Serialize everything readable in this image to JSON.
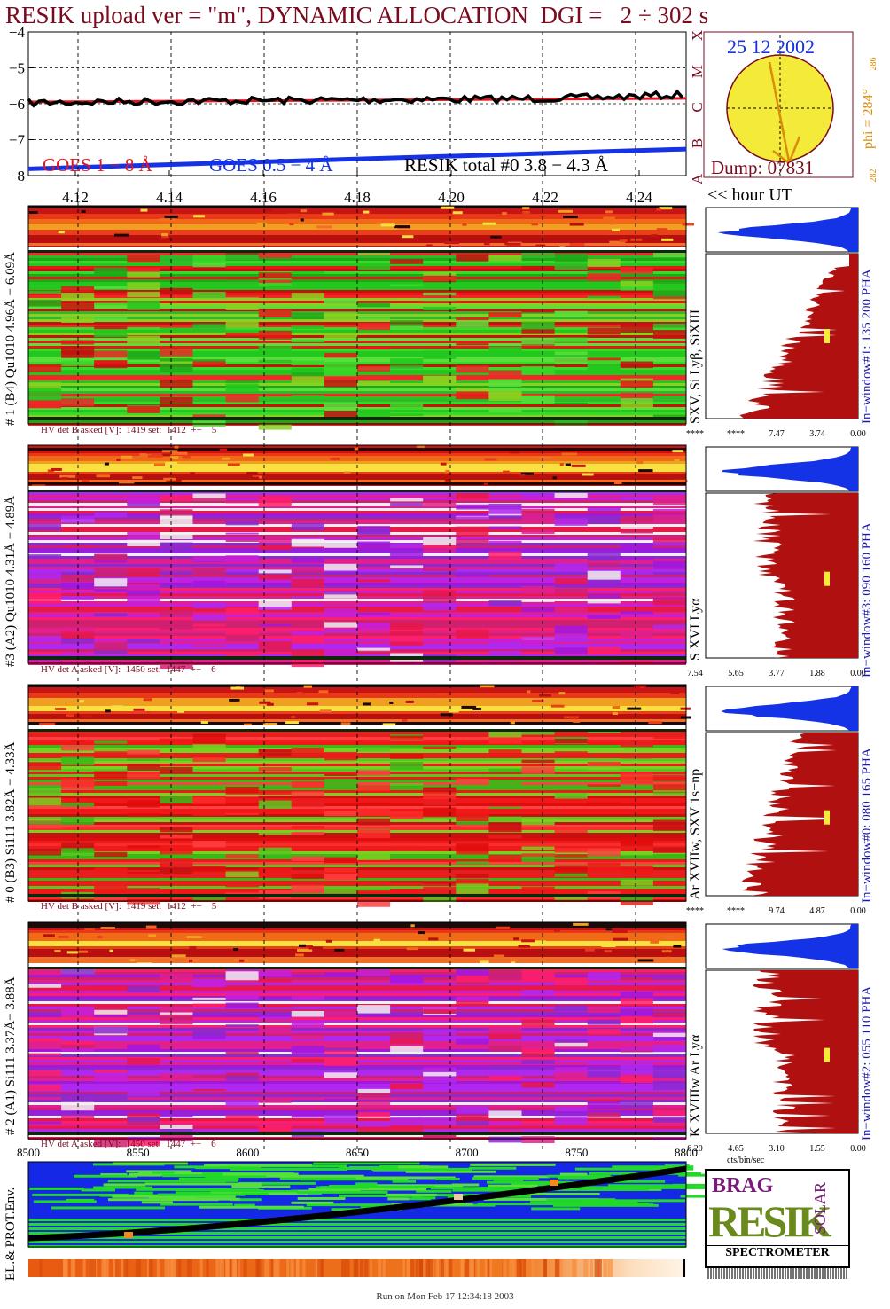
{
  "title": "RESIK upload ver = \"m\", DYNAMIC ALLOCATION  DGI =   2 ÷ 302 s",
  "footer": "Run on Mon Feb 17 12:34:18 2003",
  "colors": {
    "title": "#7a0a1e",
    "goes_red": "#e8141e",
    "goes_blue": "#1432e6",
    "resik_black": "#000000",
    "pha_fill": "#b01010",
    "pha_fill_blue": "#1432e6",
    "sun_fill": "#f4ea3a"
  },
  "chart_data": [
    {
      "type": "line",
      "name": "light-curves",
      "yticks": [
        "−4",
        "−5",
        "−6",
        "−7",
        "−8"
      ],
      "ylim": [
        -8,
        -4
      ],
      "xticks": [
        "4.12",
        "4.14",
        "4.16",
        "4.18",
        "4.20",
        "4.22",
        "4.24"
      ],
      "xlim": [
        4.11,
        4.25
      ],
      "class_letters": [
        "X",
        "M",
        "C",
        "B",
        "A"
      ],
      "legend": [
        "GOES 1 − 8 Å",
        "GOES 0.5 − 4 Å",
        "RESIK total #0  3.8 − 4.3 Å"
      ],
      "series": [
        {
          "legend_index": 0,
          "x": [
            4.11,
            4.25
          ],
          "y": [
            -5.95,
            -5.85
          ]
        },
        {
          "legend_index": 1,
          "x": [
            4.11,
            4.25
          ],
          "y": [
            -7.75,
            -7.2
          ]
        },
        {
          "legend_index": 2,
          "x": [
            4.11,
            4.13,
            4.15,
            4.17,
            4.19,
            4.21,
            4.23,
            4.25
          ],
          "y": [
            -5.97,
            -5.94,
            -5.92,
            -5.9,
            -5.88,
            -5.87,
            -5.83,
            -5.75
          ]
        }
      ],
      "time_axis_label": "<< hour UT"
    },
    {
      "type": "other",
      "name": "sun-position",
      "date": "25 12 2002",
      "dump": "Dump: 07831",
      "phi_label": "phi = 284°",
      "phi_top": "286",
      "phi_bottom": "282"
    },
    {
      "type": "heatmap",
      "name": "detector-panels",
      "panels": [
        {
          "left_label": "# 1 (B4) Qu1010 4.96Å − 6.09Å",
          "line_label": "SXV, Si Lyβ, SiXIII",
          "window_label": "In−window#1:  135 200 PHA",
          "hv_text": "HV det B asked [V]:  1419 set:  1412  +−    5",
          "pha_ticks": [
            "****",
            "****",
            "7.47",
            "3.74",
            "0.00"
          ],
          "marker_fraction": 0.5,
          "palette": "green"
        },
        {
          "left_label": "#3 (A2) Qu1010  4.31Å − 4.89Å",
          "line_label": "S XVI Lyα",
          "window_label": "In−window#3:  090 160 PHA",
          "hv_text": "HV det A asked [V]:  1450 set:  1447  +−    6",
          "pha_ticks": [
            "7.54",
            "5.65",
            "3.77",
            "1.88",
            "0.00"
          ],
          "marker_fraction": 0.52,
          "palette": "magenta"
        },
        {
          "left_label": "# 0 (B3) Si111  3.82Å − 4.33Å",
          "line_label": "Ar XVIIw,  SXV 1s−np",
          "window_label": "In−window#0:  080 165 PHA",
          "hv_text": "HV det B asked [V]:  1419 set:  1412  +−    5",
          "pha_ticks": [
            "****",
            "****",
            "9.74",
            "4.87",
            "0.00"
          ],
          "marker_fraction": 0.52,
          "palette": "red"
        },
        {
          "left_label": "# 2 (A1) Si111  3.37Å− 3.88Å",
          "line_label": "K XVIIIw  Ar Lyα",
          "window_label": "In−window#2:  055 110 PHA",
          "hv_text": "HV det A asked [V]:  1450 set:  1447  +−    6",
          "pha_ticks": [
            "6.20",
            "4.65",
            "3.10",
            "1.55",
            "0.00"
          ],
          "marker_fraction": 0.52,
          "palette": "magenta"
        }
      ],
      "orbit_xticks": [
        "8500",
        "8550",
        "8600",
        "8650",
        "8700",
        "8750",
        "8800"
      ],
      "orbit_xlim": [
        8500,
        8800
      ],
      "pha_xlabel": "cts/bin/sec",
      "env_label": "EL.& PROT.Env."
    }
  ],
  "logo": {
    "lines": [
      "BRAG",
      "RESIK",
      "SOLAR"
    ],
    "caption": "SPECTROMETER"
  }
}
